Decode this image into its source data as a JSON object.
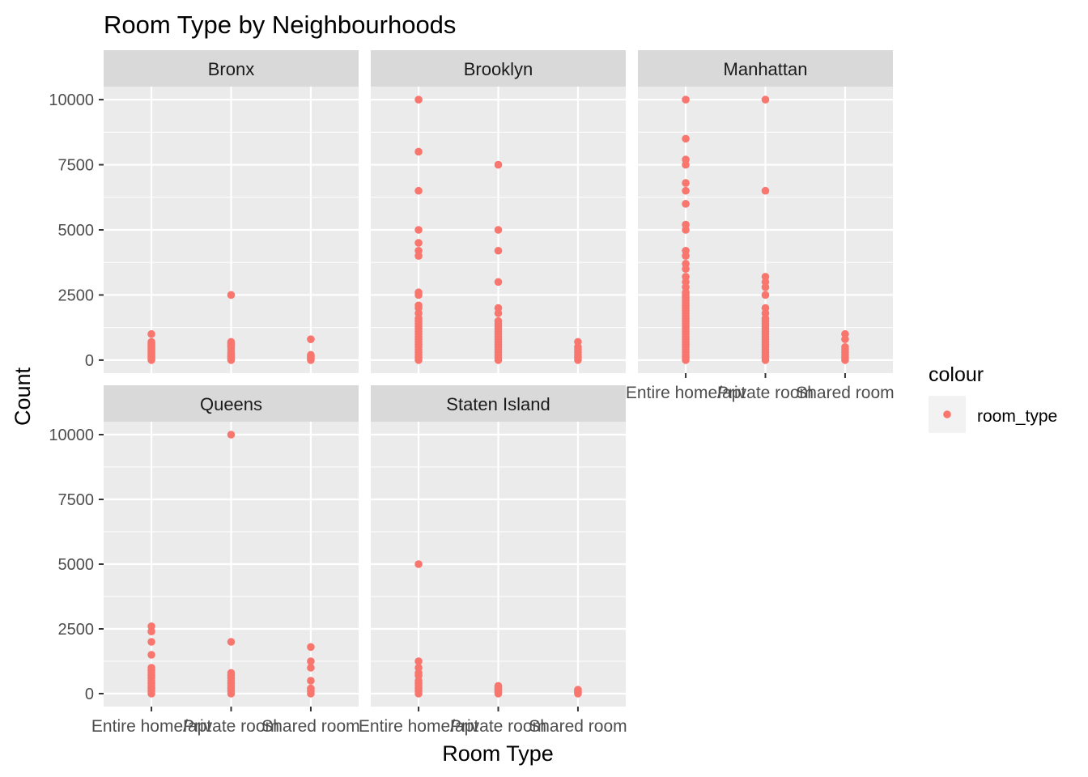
{
  "chart_data": {
    "type": "scatter",
    "title": "Room Type by Neighbourhoods",
    "xlabel": "Room Type",
    "ylabel": "Count",
    "categories": [
      "Entire home/apt",
      "Private room",
      "Shared room"
    ],
    "y_ticks": [
      0,
      2500,
      5000,
      7500,
      10000
    ],
    "ylim": [
      -500,
      10500
    ],
    "grid": true,
    "point_color": "#F8766D",
    "panel_background": "#EBEBEB",
    "strip_background": "#D9D9D9",
    "legend": {
      "title": "colour",
      "entries": [
        "room_type"
      ],
      "position": "right"
    },
    "facets": [
      {
        "name": "Bronx",
        "points": [
          {
            "x": "Entire home/apt",
            "y": [
              0,
              50,
              100,
              150,
              200,
              250,
              300,
              350,
              400,
              450,
              500,
              550,
              600,
              650,
              700,
              1000
            ]
          },
          {
            "x": "Private room",
            "y": [
              0,
              50,
              100,
              150,
              200,
              250,
              300,
              400,
              500,
              550,
              600,
              650,
              700,
              2500
            ]
          },
          {
            "x": "Shared room",
            "y": [
              0,
              50,
              100,
              150,
              200,
              800
            ]
          }
        ]
      },
      {
        "name": "Brooklyn",
        "points": [
          {
            "x": "Entire home/apt",
            "y": [
              0,
              100,
              200,
              300,
              400,
              500,
              600,
              700,
              800,
              900,
              1000,
              1100,
              1200,
              1300,
              1400,
              1500,
              1600,
              1800,
              2000,
              2100,
              2500,
              2600,
              4000,
              4200,
              4500,
              5000,
              6500,
              8000,
              10000
            ]
          },
          {
            "x": "Private room",
            "y": [
              0,
              100,
              200,
              300,
              400,
              500,
              600,
              700,
              800,
              900,
              1000,
              1100,
              1200,
              1300,
              1400,
              1500,
              1800,
              2000,
              3000,
              4200,
              5000,
              7500
            ]
          },
          {
            "x": "Shared room",
            "y": [
              0,
              100,
              200,
              300,
              400,
              500,
              700
            ]
          }
        ]
      },
      {
        "name": "Manhattan",
        "points": [
          {
            "x": "Entire home/apt",
            "y": [
              0,
              100,
              200,
              300,
              400,
              500,
              600,
              700,
              800,
              900,
              1000,
              1100,
              1200,
              1300,
              1400,
              1500,
              1600,
              1700,
              1800,
              1900,
              2000,
              2100,
              2200,
              2300,
              2400,
              2500,
              2600,
              2800,
              3000,
              3200,
              3500,
              3700,
              4000,
              4200,
              5000,
              5200,
              6000,
              6500,
              6800,
              7500,
              7700,
              8500,
              10000
            ]
          },
          {
            "x": "Private room",
            "y": [
              0,
              100,
              200,
              300,
              400,
              500,
              600,
              700,
              800,
              900,
              1000,
              1100,
              1200,
              1300,
              1400,
              1500,
              1600,
              1800,
              2000,
              2500,
              2800,
              3000,
              3200,
              6500,
              10000
            ]
          },
          {
            "x": "Shared room",
            "y": [
              0,
              100,
              200,
              300,
              400,
              500,
              800,
              1000
            ]
          }
        ]
      },
      {
        "name": "Queens",
        "points": [
          {
            "x": "Entire home/apt",
            "y": [
              0,
              100,
              200,
              300,
              400,
              500,
              600,
              700,
              800,
              900,
              1000,
              1500,
              2000,
              2400,
              2600
            ]
          },
          {
            "x": "Private room",
            "y": [
              0,
              100,
              200,
              300,
              400,
              500,
              600,
              700,
              800,
              2000,
              10000
            ]
          },
          {
            "x": "Shared room",
            "y": [
              0,
              100,
              200,
              500,
              1000,
              1250,
              1800
            ]
          }
        ]
      },
      {
        "name": "Staten Island",
        "points": [
          {
            "x": "Entire home/apt",
            "y": [
              0,
              100,
              200,
              300,
              400,
              500,
              700,
              800,
              1000,
              1250,
              5000
            ]
          },
          {
            "x": "Private room",
            "y": [
              0,
              50,
              100,
              150,
              200,
              250,
              300
            ]
          },
          {
            "x": "Shared room",
            "y": [
              0,
              50,
              100,
              150
            ]
          }
        ]
      }
    ]
  }
}
